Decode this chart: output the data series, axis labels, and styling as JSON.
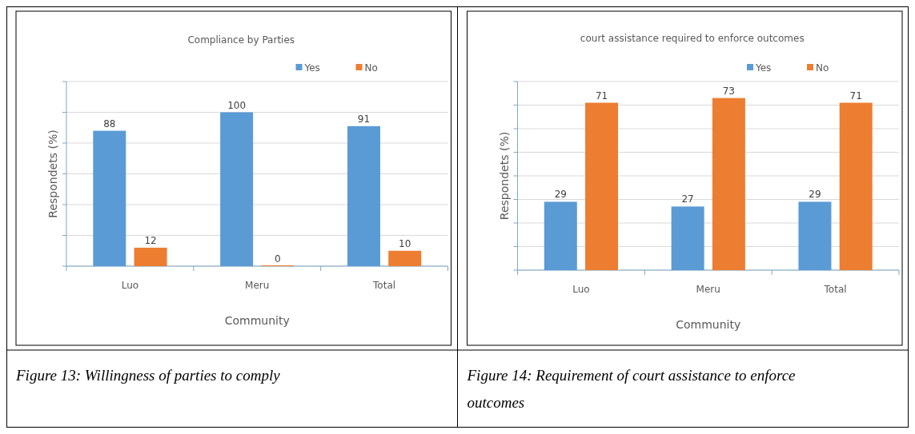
{
  "chart_data": [
    {
      "type": "bar",
      "title": "Compliance by Parties",
      "xlabel": "Community",
      "ylabel": "Respondets (%)",
      "categories": [
        "Luo",
        "Meru",
        "Total"
      ],
      "series": [
        {
          "name": "Yes",
          "color": "#5b9bd5",
          "values": [
            88,
            100,
            91
          ]
        },
        {
          "name": "No",
          "color": "#ed7d31",
          "values": [
            12,
            0,
            10
          ]
        }
      ],
      "ylim": [
        0,
        120
      ],
      "yticks": [
        {
          "value": 0,
          "label": null
        },
        {
          "value": 20,
          "label": null
        },
        {
          "value": 40,
          "label": null
        },
        {
          "value": 60,
          "label": null
        },
        {
          "value": 80,
          "label": null
        },
        {
          "value": 100,
          "label": null
        },
        {
          "value": 120,
          "label": null
        }
      ],
      "tick_labels": "x",
      "grid": "y",
      "legend": "top right",
      "data_labels": true,
      "annotations": [
        "Figure 13: Willingness of parties to comply"
      ]
    },
    {
      "type": "bar",
      "title": "court assistance required to enforce outcomes",
      "xlabel": "Community",
      "ylabel": "Respondets (%)",
      "categories": [
        "Luo",
        "Meru",
        "Total"
      ],
      "series": [
        {
          "name": "Yes",
          "color": "#5b9bd5",
          "values": [
            29,
            27,
            29
          ]
        },
        {
          "name": "No",
          "color": "#ed7d31",
          "values": [
            71,
            73,
            71
          ]
        }
      ],
      "ylim": [
        0,
        80
      ],
      "yticks": [
        {
          "value": 0,
          "label": null
        },
        {
          "value": 10,
          "label": null
        },
        {
          "value": 20,
          "label": null
        },
        {
          "value": 30,
          "label": null
        },
        {
          "value": 40,
          "label": null
        },
        {
          "value": 50,
          "label": null
        },
        {
          "value": 60,
          "label": null
        },
        {
          "value": 70,
          "label": null
        },
        {
          "value": 80,
          "label": null
        }
      ],
      "tick_labels": "x",
      "grid": "y",
      "legend": "top right",
      "data_labels": true,
      "annotations": [
        "Figure 14: Requirement of court assistance to enforce outcomes"
      ]
    }
  ]
}
